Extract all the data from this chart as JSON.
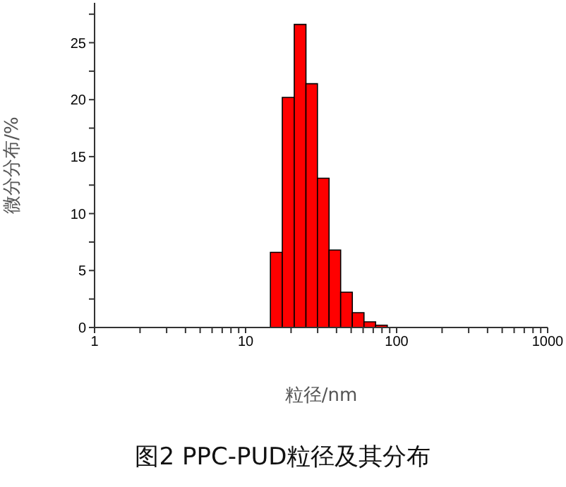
{
  "chart_data": {
    "type": "histogram",
    "title": "图2 PPC-PUD粒径及其分布",
    "xlabel": "粒径/nm",
    "ylabel": "微分分布/%",
    "bins": [
      12.2,
      14.6,
      17.5,
      21.0,
      25.1,
      29.9,
      35.7,
      42.6,
      50.9,
      60.8,
      72.6,
      86.7
    ],
    "values": [
      null,
      6.6,
      20.2,
      26.6,
      21.4,
      13.1,
      6.8,
      3.1,
      1.3,
      0.5,
      0.2
    ],
    "color": "#ff0000",
    "log": "x",
    "xlim": [
      1,
      1000
    ],
    "xticks": [
      1,
      {
        "value": 2,
        "label": null
      },
      {
        "value": 3,
        "label": null
      },
      {
        "value": 4,
        "label": null
      },
      {
        "value": 5,
        "label": null
      },
      {
        "value": 6,
        "label": null
      },
      {
        "value": 7,
        "label": null
      },
      {
        "value": 8,
        "label": null
      },
      {
        "value": 9,
        "label": null
      },
      10,
      {
        "value": 20,
        "label": null
      },
      {
        "value": 30,
        "label": null
      },
      {
        "value": 40,
        "label": null
      },
      {
        "value": 50,
        "label": null
      },
      {
        "value": 60,
        "label": null
      },
      {
        "value": 70,
        "label": null
      },
      {
        "value": 80,
        "label": null
      },
      {
        "value": 90,
        "label": null
      },
      100,
      {
        "value": 200,
        "label": null
      },
      {
        "value": 300,
        "label": null
      },
      {
        "value": 400,
        "label": null
      },
      {
        "value": 500,
        "label": null
      },
      {
        "value": 600,
        "label": null
      },
      {
        "value": 700,
        "label": null
      },
      {
        "value": 800,
        "label": null
      },
      {
        "value": 900,
        "label": null
      },
      1000
    ],
    "ylim": [
      0,
      28.5
    ],
    "yticks": [
      0,
      {
        "value": 2.5,
        "label": null
      },
      5,
      {
        "value": 7.5,
        "label": null
      },
      10,
      {
        "value": 12.5,
        "label": null
      },
      15,
      {
        "value": 17.5,
        "label": null
      },
      20,
      {
        "value": 22.5,
        "label": null
      },
      25,
      {
        "value": 27.5,
        "label": null
      }
    ],
    "grid": false
  }
}
